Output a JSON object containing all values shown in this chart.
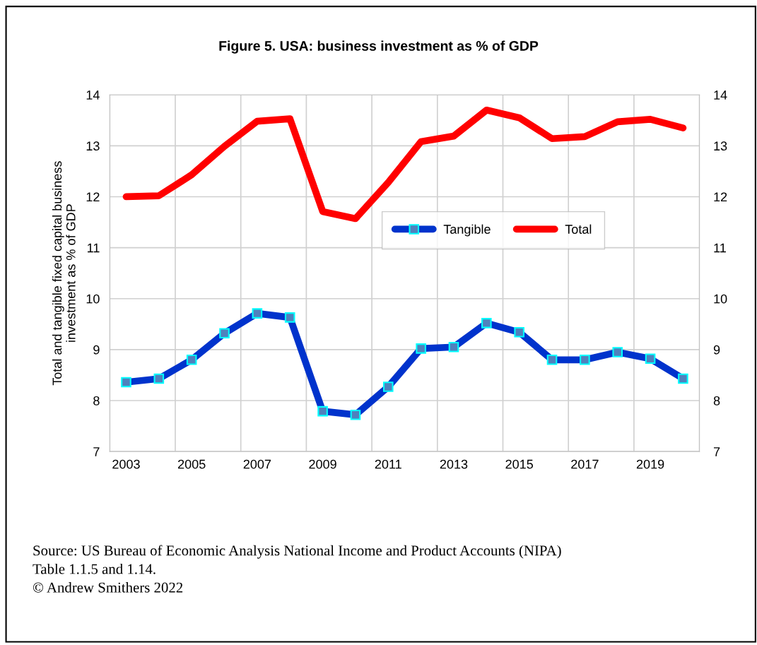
{
  "chart_data": {
    "type": "line",
    "title": "Figure 5. USA: business investment as % of GDP",
    "ylabel": "Total and tangible fixed capital business\ninvestment as % of GDP",
    "categories": [
      "2003",
      null,
      "2005",
      null,
      "2007",
      null,
      "2009",
      null,
      "2011",
      null,
      "2013",
      null,
      "2015",
      null,
      "2017",
      null,
      "2019",
      null
    ],
    "series": [
      {
        "name": "Tangible",
        "color": "#0033cc",
        "marker": "square",
        "values": [
          8.36,
          8.43,
          8.8,
          9.32,
          9.71,
          9.63,
          7.79,
          7.72,
          8.27,
          9.02,
          9.05,
          9.52,
          9.34,
          8.8,
          8.8,
          8.95,
          8.82,
          8.43
        ]
      },
      {
        "name": "Total",
        "color": "#ff0000",
        "marker": "none",
        "values": [
          12.0,
          12.02,
          12.43,
          12.99,
          13.48,
          13.53,
          11.71,
          11.57,
          12.28,
          13.08,
          13.19,
          13.7,
          13.55,
          13.14,
          13.18,
          13.47,
          13.52,
          13.35
        ]
      }
    ],
    "ylim": [
      7,
      14
    ],
    "yticks": [
      7,
      8,
      9,
      10,
      11,
      12,
      13,
      14
    ],
    "y2lim": [
      7,
      14
    ],
    "y2ticks": [
      7,
      8,
      9,
      10,
      11,
      12,
      13,
      14
    ],
    "grid": true,
    "legend": "right",
    "annotations": [
      "Source: US Bureau of Economic Analysis National Income and Product Accounts (NIPA)\nTable 1.1.5 and 1.14.\n© Andrew Smithers 2022"
    ]
  }
}
